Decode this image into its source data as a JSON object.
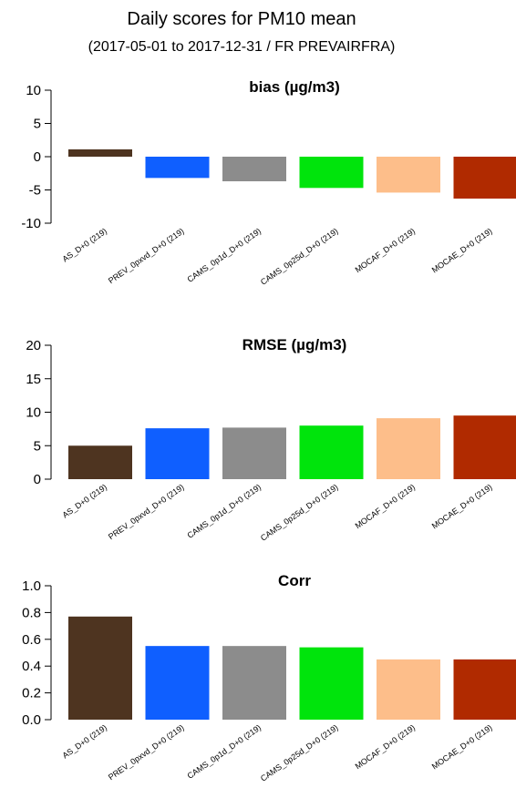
{
  "title": "Daily scores for PM10 mean",
  "subtitle": "(2017-05-01 to 2017-12-31 / FR PREVAIRFRA)",
  "chart_data": [
    {
      "type": "bar",
      "title": "bias (µg/m3)",
      "categories": [
        "AS_D+0 (219)",
        "PREV_0pxvd_D+0 (219)",
        "CAMS_0p1d_D+0 (219)",
        "CAMS_0p25d_D+0 (219)",
        "MOCAF_D+0 (219)",
        "MOCAE_D+0 (219)"
      ],
      "values": [
        1.1,
        -3.2,
        -3.7,
        -4.7,
        -5.4,
        -6.3
      ],
      "colors": [
        "#4e3420",
        "#0f5fff",
        "#8c8c8c",
        "#00e40c",
        "#fdbe8a",
        "#b02a00"
      ],
      "ylim": [
        -10,
        10
      ],
      "yticks": [
        10,
        5,
        0,
        -5,
        -10
      ],
      "grid": false
    },
    {
      "type": "bar",
      "title": "RMSE (µg/m3)",
      "categories": [
        "AS_D+0 (219)",
        "PREV_0pxvd_D+0 (219)",
        "CAMS_0p1d_D+0 (219)",
        "CAMS_0p25d_D+0 (219)",
        "MOCAF_D+0 (219)",
        "MOCAE_D+0 (219)"
      ],
      "values": [
        5.0,
        7.6,
        7.7,
        8.0,
        9.1,
        9.5
      ],
      "colors": [
        "#4e3420",
        "#0f5fff",
        "#8c8c8c",
        "#00e40c",
        "#fdbe8a",
        "#b02a00"
      ],
      "ylim": [
        0,
        20
      ],
      "yticks": [
        20,
        15,
        10,
        5,
        0
      ],
      "grid": false
    },
    {
      "type": "bar",
      "title": "Corr",
      "categories": [
        "AS_D+0 (219)",
        "PREV_0pxvd_D+0 (219)",
        "CAMS_0p1d_D+0 (219)",
        "CAMS_0p25d_D+0 (219)",
        "MOCAF_D+0 (219)",
        "MOCAE_D+0 (219)"
      ],
      "values": [
        0.77,
        0.55,
        0.55,
        0.54,
        0.45,
        0.45
      ],
      "colors": [
        "#4e3420",
        "#0f5fff",
        "#8c8c8c",
        "#00e40c",
        "#fdbe8a",
        "#b02a00"
      ],
      "ylim": [
        0,
        1.0
      ],
      "yticks": [
        "1.0",
        "0.8",
        "0.6",
        "0.4",
        "0.2",
        "0.0"
      ],
      "grid": false
    }
  ]
}
